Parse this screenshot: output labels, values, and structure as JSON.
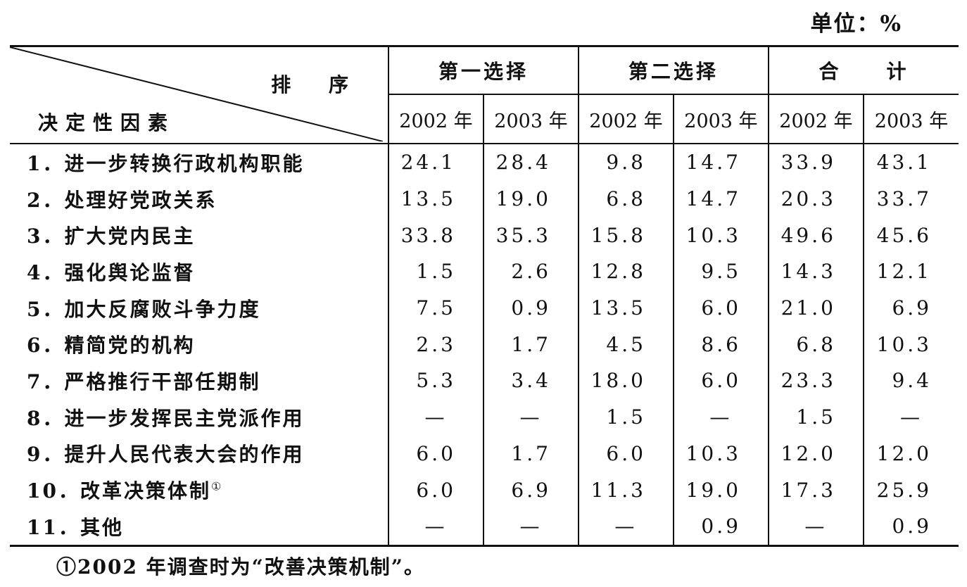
{
  "unit_label": "单位：%",
  "header": {
    "sort_label": "排 序",
    "factor_label": "决定性因素",
    "groups": [
      "第一选择",
      "第二选择",
      "合　　计"
    ],
    "years": [
      "2002 年",
      "2003 年",
      "2002 年",
      "2003 年",
      "2002 年",
      "2003 年"
    ]
  },
  "rows": [
    {
      "label": "1．进一步转换行政机构职能",
      "sup": "",
      "values": [
        "24.1",
        "28.4",
        "9.8",
        "14.7",
        "33.9",
        "43.1"
      ]
    },
    {
      "label": "2．处理好党政关系",
      "sup": "",
      "values": [
        "13.5",
        "19.0",
        "6.8",
        "14.7",
        "20.3",
        "33.7"
      ]
    },
    {
      "label": "3．扩大党内民主",
      "sup": "",
      "values": [
        "33.8",
        "35.3",
        "15.8",
        "10.3",
        "49.6",
        "45.6"
      ]
    },
    {
      "label": "4．强化舆论监督",
      "sup": "",
      "values": [
        "1.5",
        "2.6",
        "12.8",
        "9.5",
        "14.3",
        "12.1"
      ]
    },
    {
      "label": "5．加大反腐败斗争力度",
      "sup": "",
      "values": [
        "7.5",
        "0.9",
        "13.5",
        "6.0",
        "21.0",
        "6.9"
      ]
    },
    {
      "label": "6．精简党的机构",
      "sup": "",
      "values": [
        "2.3",
        "1.7",
        "4.5",
        "8.6",
        "6.8",
        "10.3"
      ]
    },
    {
      "label": "7．严格推行干部任期制",
      "sup": "",
      "values": [
        "5.3",
        "3.4",
        "18.0",
        "6.0",
        "23.3",
        "9.4"
      ]
    },
    {
      "label": "8．进一步发挥民主党派作用",
      "sup": "",
      "values": [
        "—",
        "—",
        "1.5",
        "—",
        "1.5",
        "—"
      ]
    },
    {
      "label": "9．提升人民代表大会的作用",
      "sup": "",
      "values": [
        "6.0",
        "1.7",
        "6.0",
        "10.3",
        "12.0",
        "12.0"
      ]
    },
    {
      "label": "10．改革决策体制",
      "sup": "①",
      "values": [
        "6.0",
        "6.9",
        "11.3",
        "19.0",
        "17.3",
        "25.9"
      ]
    },
    {
      "label": "11．其他",
      "sup": "",
      "values": [
        "—",
        "—",
        "—",
        "0.9",
        "—",
        "0.9"
      ]
    }
  ],
  "footnote": "①2002 年调查时为“改善决策机制”。"
}
